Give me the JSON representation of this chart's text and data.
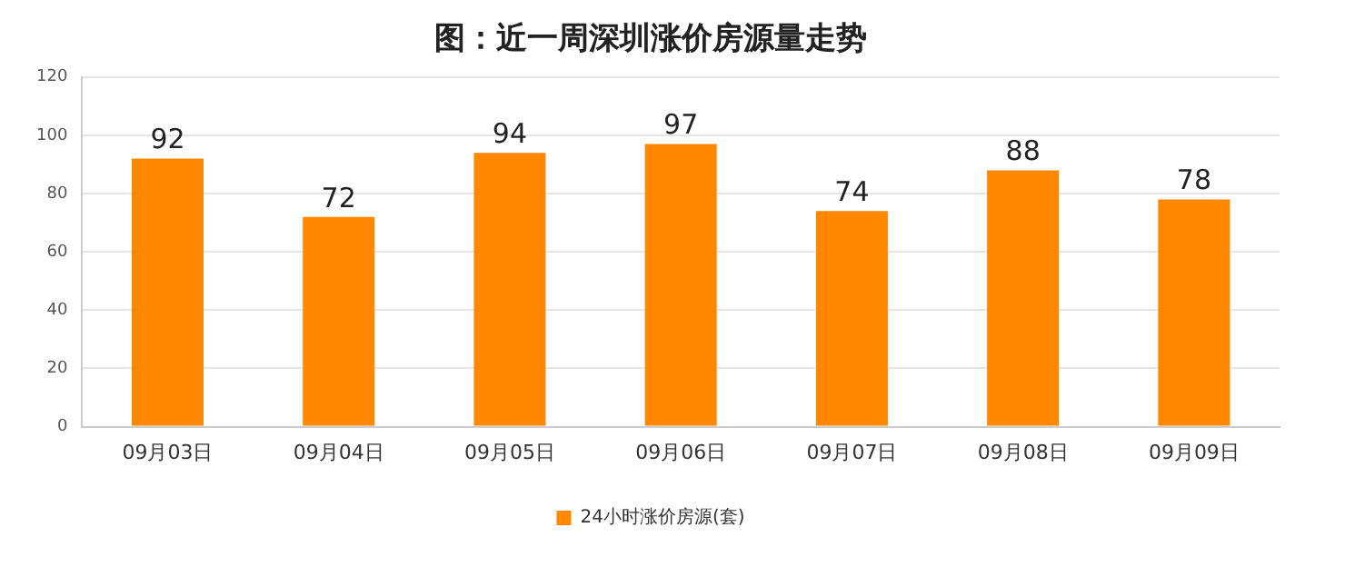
{
  "chart_data": {
    "type": "bar",
    "title": "图：近一周深圳涨价房源量走势",
    "categories": [
      "09月03日",
      "09月04日",
      "09月05日",
      "09月06日",
      "09月07日",
      "09月08日",
      "09月09日"
    ],
    "series": [
      {
        "name": "24小时涨价房源(套)",
        "color": "#ff8800",
        "values": [
          92,
          72,
          94,
          97,
          74,
          88,
          78
        ]
      }
    ],
    "ylim": [
      0,
      120
    ],
    "yticks": [
      0,
      20,
      40,
      60,
      80,
      100,
      120
    ],
    "grid": "y",
    "legend": "bottom",
    "data_labels": true
  }
}
